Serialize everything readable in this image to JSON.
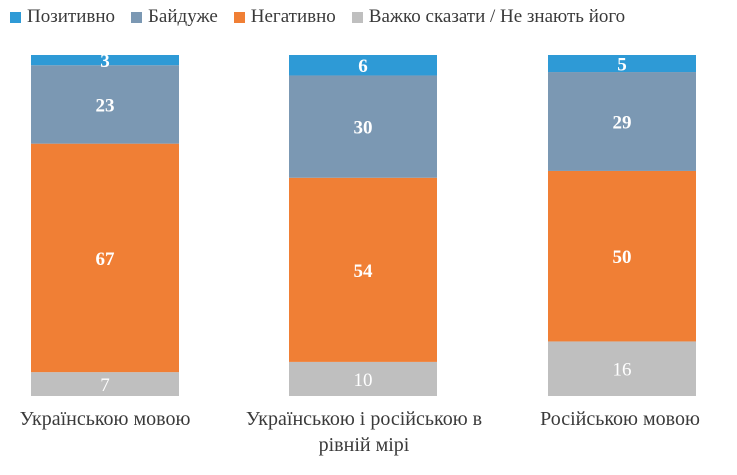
{
  "legend": [
    {
      "label": "Позитивно",
      "color": "#2e9ad6"
    },
    {
      "label": "Байдуже",
      "color": "#7b98b3"
    },
    {
      "label": "Негативно",
      "color": "#f07f35"
    },
    {
      "label": "Важко сказати / Не знають його",
      "color": "#bfbfbf"
    }
  ],
  "categories_text": [
    "Українською мовою",
    "Українською і російською в рівній мірі",
    "Російською мовою"
  ],
  "chart_data": {
    "type": "bar",
    "stacked": true,
    "orientation": "vertical",
    "categories": [
      "Українською мовою",
      "Українською і російською в рівній мірі",
      "Російською мовою"
    ],
    "series": [
      {
        "name": "Позитивно",
        "color": "#2e9ad6",
        "values": [
          3,
          6,
          5
        ]
      },
      {
        "name": "Байдуже",
        "color": "#7b98b3",
        "values": [
          23,
          30,
          29
        ]
      },
      {
        "name": "Негативно",
        "color": "#f07f35",
        "values": [
          67,
          54,
          50
        ]
      },
      {
        "name": "Важко сказати / Не знають його",
        "color": "#bfbfbf",
        "values": [
          7,
          10,
          16
        ]
      }
    ],
    "data_labels": true,
    "ylim": [
      0,
      100
    ],
    "grid": false,
    "legend_position": "top"
  }
}
